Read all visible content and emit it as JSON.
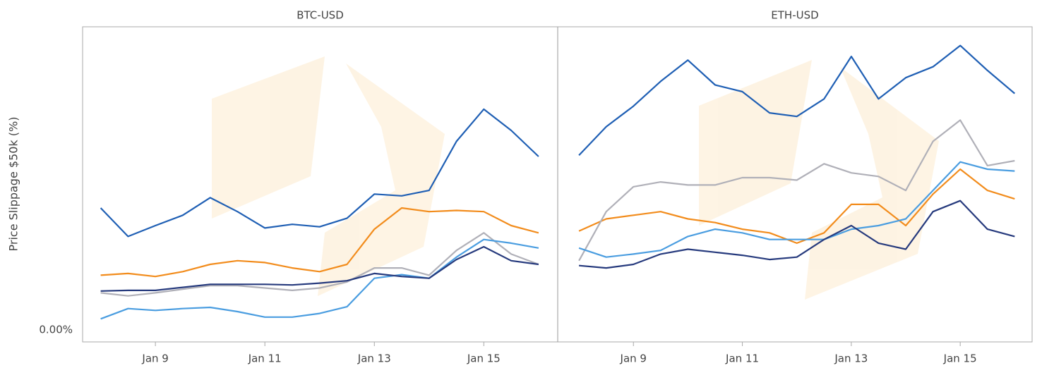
{
  "chart_data": [
    {
      "type": "line",
      "title": "BTC-USD",
      "ylabel": "Price Slippage $50k (%)",
      "x": [
        8,
        8.5,
        9,
        9.5,
        10,
        10.5,
        11,
        11.5,
        12,
        12.5,
        13,
        13.5,
        14,
        14.5,
        15,
        15.5,
        16
      ],
      "xlim": [
        7.67,
        16.35
      ],
      "xticks": [
        {
          "value": 9,
          "label": "Jan 9"
        },
        {
          "value": 11,
          "label": "Jan 11"
        },
        {
          "value": 13,
          "label": "Jan 13"
        },
        {
          "value": 15,
          "label": "Jan 15"
        }
      ],
      "ylim": [
        -0.02,
        0.5
      ],
      "yticks": [
        {
          "value": 0,
          "label": "0.00%"
        }
      ],
      "series": [
        {
          "color": "#1f5fb4",
          "values": [
            0.201,
            0.154,
            0.172,
            0.189,
            0.218,
            0.195,
            0.168,
            0.174,
            0.17,
            0.184,
            0.224,
            0.221,
            0.23,
            0.311,
            0.364,
            0.329,
            0.286
          ]
        },
        {
          "color": "#f28c1c",
          "values": [
            0.09,
            0.093,
            0.088,
            0.096,
            0.108,
            0.114,
            0.111,
            0.102,
            0.096,
            0.108,
            0.166,
            0.201,
            0.195,
            0.197,
            0.195,
            0.172,
            0.16
          ]
        },
        {
          "color": "#b0b0b8",
          "values": [
            0.061,
            0.056,
            0.061,
            0.067,
            0.073,
            0.073,
            0.069,
            0.065,
            0.069,
            0.079,
            0.102,
            0.102,
            0.09,
            0.131,
            0.16,
            0.125,
            0.108
          ]
        },
        {
          "color": "#4a9de0",
          "values": [
            0.018,
            0.035,
            0.032,
            0.035,
            0.037,
            0.03,
            0.021,
            0.021,
            0.027,
            0.038,
            0.085,
            0.091,
            0.085,
            0.12,
            0.149,
            0.143,
            0.135
          ]
        },
        {
          "color": "#263a7d",
          "values": [
            0.064,
            0.065,
            0.065,
            0.07,
            0.075,
            0.075,
            0.075,
            0.074,
            0.077,
            0.081,
            0.093,
            0.088,
            0.085,
            0.116,
            0.137,
            0.114,
            0.108
          ]
        }
      ]
    },
    {
      "type": "line",
      "title": "ETH-USD",
      "x": [
        8,
        8.5,
        9,
        9.5,
        10,
        10.5,
        11,
        11.5,
        12,
        12.5,
        13,
        13.5,
        14,
        14.5,
        15,
        15.5,
        16
      ],
      "xlim": [
        7.61,
        16.32
      ],
      "xticks": [
        {
          "value": 9,
          "label": "Jan 9"
        },
        {
          "value": 11,
          "label": "Jan 11"
        },
        {
          "value": 13,
          "label": "Jan 13"
        },
        {
          "value": 15,
          "label": "Jan 15"
        }
      ],
      "ylim": [
        -0.02,
        0.5
      ],
      "series": [
        {
          "color": "#1f5fb4",
          "values": [
            0.288,
            0.335,
            0.369,
            0.41,
            0.445,
            0.404,
            0.393,
            0.358,
            0.352,
            0.381,
            0.451,
            0.381,
            0.416,
            0.434,
            0.469,
            0.428,
            0.39
          ]
        },
        {
          "color": "#f28c1c",
          "values": [
            0.163,
            0.183,
            0.189,
            0.195,
            0.183,
            0.177,
            0.166,
            0.16,
            0.143,
            0.16,
            0.207,
            0.207,
            0.172,
            0.224,
            0.265,
            0.23,
            0.216
          ]
        },
        {
          "color": "#b0b0b8",
          "values": [
            0.114,
            0.195,
            0.236,
            0.244,
            0.239,
            0.239,
            0.251,
            0.251,
            0.247,
            0.274,
            0.259,
            0.253,
            0.23,
            0.311,
            0.346,
            0.271,
            0.279
          ]
        },
        {
          "color": "#4a9de0",
          "values": [
            0.135,
            0.12,
            0.125,
            0.131,
            0.154,
            0.166,
            0.16,
            0.149,
            0.149,
            0.149,
            0.166,
            0.172,
            0.183,
            0.23,
            0.277,
            0.265,
            0.262
          ]
        },
        {
          "color": "#263a7d",
          "values": [
            0.106,
            0.102,
            0.108,
            0.125,
            0.133,
            0.128,
            0.123,
            0.116,
            0.12,
            0.149,
            0.172,
            0.143,
            0.133,
            0.195,
            0.213,
            0.166,
            0.154
          ]
        }
      ]
    }
  ]
}
